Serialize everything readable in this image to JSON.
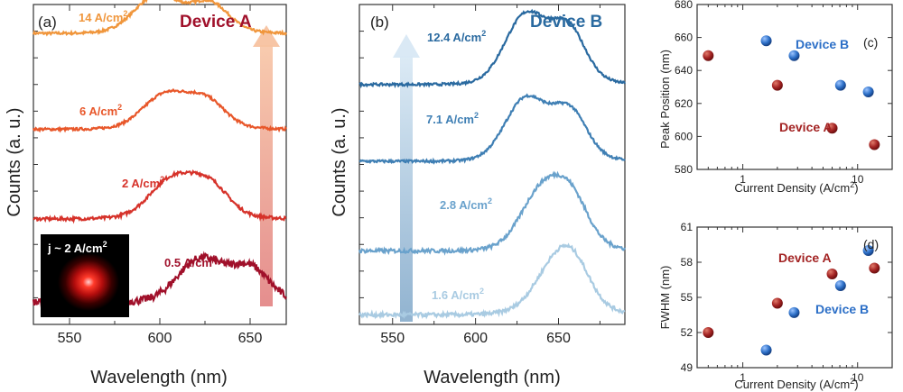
{
  "chart_data": [
    {
      "type": "line",
      "panel": "(a)",
      "title": "Device A",
      "xlabel": "Wavelength (nm)",
      "ylabel": "Counts (a. u.)",
      "xlim": [
        530,
        670
      ],
      "xticks": [
        550,
        600,
        650
      ],
      "y_ticks_labeled": false,
      "grid": false,
      "series": [
        {
          "name": "14 A/cm2",
          "label_base": "14 A/cm",
          "label_sup": "2",
          "color": "#f0963c",
          "offset": 0.9,
          "peak1": 598,
          "peak2": 628,
          "amp": 0.115,
          "noise": 0.004
        },
        {
          "name": "6 A/cm2",
          "label_base": "6 A/cm",
          "label_sup": "2",
          "color": "#e8572a",
          "offset": 0.6,
          "peak1": 603,
          "peak2": 626,
          "amp": 0.105,
          "noise": 0.004
        },
        {
          "name": "2 A/cm2",
          "label_base": "2 A/cm",
          "label_sup": "2",
          "color": "#d6322a",
          "offset": 0.32,
          "peak1": 607,
          "peak2": 628,
          "amp": 0.12,
          "noise": 0.005
        },
        {
          "name": "0.5 A/cm2",
          "label_base": "0.5 A/cm",
          "label_sup": "2",
          "color": "#a0102a",
          "offset": 0.06,
          "peak1": 622,
          "peak2": 650,
          "amp": 0.13,
          "noise": 0.012
        }
      ],
      "inset_text": "j ~ 2 A/cm",
      "inset_sup": "2"
    },
    {
      "type": "line",
      "panel": "(b)",
      "title": "Device B",
      "xlabel": "Wavelength (nm)",
      "ylabel": "Counts (a. u.)",
      "xlim": [
        530,
        690
      ],
      "xticks": [
        550,
        600,
        650
      ],
      "y_ticks_labeled": false,
      "grid": false,
      "series": [
        {
          "name": "12.4 A/cm2",
          "label_base": "12.4 A/cm",
          "label_sup": "2",
          "color": "#2a6aa0",
          "offset": 0.74,
          "peak1": 630,
          "peak2": 656,
          "amp": 0.21,
          "noise": 0.004
        },
        {
          "name": "7.1 A/cm2",
          "label_base": "7.1 A/cm",
          "label_sup": "2",
          "color": "#3f7fb4",
          "offset": 0.5,
          "peak1": 630,
          "peak2": 657,
          "amp": 0.19,
          "noise": 0.004
        },
        {
          "name": "2.8 A/cm2",
          "label_base": "2.8 A/cm",
          "label_sup": "2",
          "color": "#6aa2cc",
          "offset": 0.22,
          "peak1": 640,
          "peak2": 658,
          "amp": 0.18,
          "noise": 0.006
        },
        {
          "name": "1.6 A/cm2",
          "label_base": "1.6 A/cm",
          "label_sup": "2",
          "color": "#a9cbe2",
          "offset": 0.02,
          "peak1": 648,
          "peak2": 660,
          "amp": 0.14,
          "noise": 0.006
        }
      ]
    },
    {
      "type": "scatter",
      "panel": "(c)",
      "xlabel": "Current Density (A/cm",
      "xlabel_sup": "2",
      "xlabel_end": ")",
      "ylabel": "Peak Position (nm)",
      "xscale": "log",
      "xlim": [
        0.4,
        20
      ],
      "ylim": [
        580,
        680
      ],
      "yticks": [
        580,
        600,
        620,
        640,
        660,
        680
      ],
      "xticks": [
        1,
        10
      ],
      "series": [
        {
          "name": "Device A",
          "color": "#a32323",
          "x": [
            0.5,
            2,
            6,
            14
          ],
          "y": [
            649,
            631,
            605,
            595
          ]
        },
        {
          "name": "Device B",
          "color": "#2c6fc7",
          "x": [
            1.6,
            2.8,
            7.1,
            12.4
          ],
          "y": [
            658,
            649,
            631,
            627
          ]
        }
      ]
    },
    {
      "type": "scatter",
      "panel": "(d)",
      "xlabel": "Current Density (A/cm",
      "xlabel_sup": "2",
      "xlabel_end": ")",
      "ylabel": "FWHM (nm)",
      "xscale": "log",
      "xlim": [
        0.4,
        20
      ],
      "ylim": [
        49,
        61
      ],
      "yticks": [
        49,
        52,
        55,
        58,
        61
      ],
      "xticks": [
        1,
        10
      ],
      "series": [
        {
          "name": "Device A",
          "color": "#a32323",
          "x": [
            0.5,
            2,
            6,
            14
          ],
          "y": [
            52.0,
            54.5,
            57.0,
            57.5
          ]
        },
        {
          "name": "Device B",
          "color": "#2c6fc7",
          "x": [
            1.6,
            2.8,
            7.1,
            12.4
          ],
          "y": [
            50.5,
            53.7,
            56.0,
            59.0
          ]
        }
      ]
    }
  ]
}
